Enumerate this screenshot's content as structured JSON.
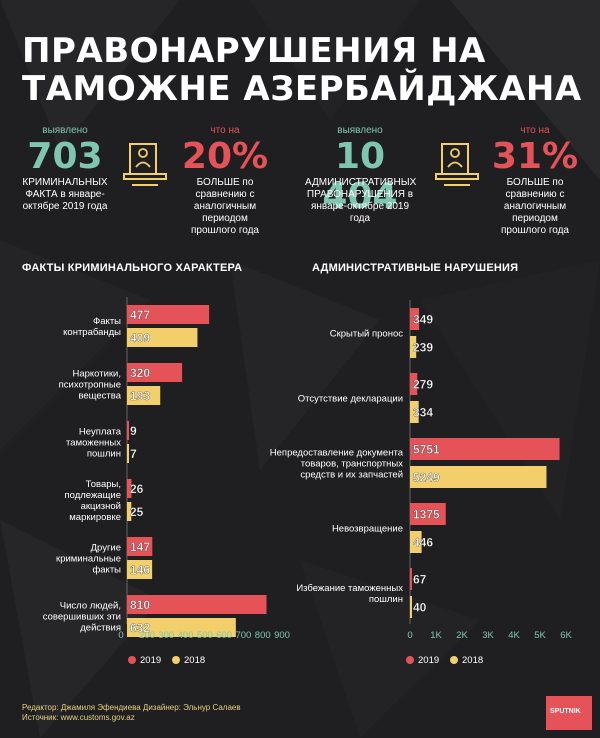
{
  "title": "ПРАВОНАРУШЕНИЯ НА ТАМОЖНЕ АЗЕРБАЙДЖАНА",
  "stats": [
    {
      "top_label": "выявлено",
      "value": "703",
      "desc": "КРИМИНАЛЬНЫХ ФАКТА в январе-октябре 2019 года"
    },
    {
      "top_label": "что на",
      "value": "20%",
      "desc": "БОЛЬШЕ по сравнению с аналогичным периодом прошлого года"
    },
    {
      "top_label": "выявлено",
      "value": "10 404",
      "desc": "АДМИНИСТРАТИВНЫХ ПРАВОНАРУШЕНИЯ в январе-октябре 2019 года"
    },
    {
      "top_label": "что на",
      "value": "31%",
      "desc": "БОЛЬШЕ по сравнению с аналогичным периодом прошлого года"
    }
  ],
  "colors": {
    "y2019": "#e55358",
    "y2018": "#f3cf6b",
    "teal": "#7fc6b1",
    "background": "#1f1f21"
  },
  "icons": [
    "document-laptop-icon",
    "document-laptop-icon"
  ],
  "chart_data": [
    {
      "type": "bar",
      "orientation": "horizontal",
      "title": "ФАКТЫ КРИМИНАЛЬНОГО ХАРАКТЕРА",
      "categories": [
        "Факты контрабанды",
        "Наркотики, психотропные вещества",
        "Неуплата таможенных пошлин",
        "Товары, подлежащие акцизной маркировке",
        "Другие криминальные факты",
        "Число людей, совершивших эти действия"
      ],
      "series": [
        {
          "name": "2019",
          "values": [
            477,
            320,
            9,
            26,
            147,
            810
          ]
        },
        {
          "name": "2018",
          "values": [
            409,
            193,
            7,
            25,
            146,
            632
          ]
        }
      ],
      "xlim": [
        0,
        900
      ],
      "xticks": [
        "0",
        "200",
        "300",
        "400",
        "500",
        "600",
        "700",
        "800",
        "900"
      ],
      "legend": [
        "2019",
        "2018"
      ],
      "legend_position": "bottom"
    },
    {
      "type": "bar",
      "orientation": "horizontal",
      "title": "АДМИНИСТРАТИВНЫЕ НАРУШЕНИЯ",
      "categories": [
        "Скрытый пронос",
        "Отсутствие декларации",
        "Непредоставление документа товаров, транспортных средств и их запчастей",
        "Невозвращение",
        "Избежание таможенных пошлин"
      ],
      "series": [
        {
          "name": "2019",
          "values": [
            349,
            279,
            5751,
            1375,
            67
          ]
        },
        {
          "name": "2018",
          "values": [
            239,
            334,
            5249,
            446,
            40
          ]
        }
      ],
      "xlim": [
        0,
        6000
      ],
      "xticks": [
        "0",
        "1K",
        "2K",
        "3K",
        "4K",
        "5K",
        "6K"
      ],
      "legend": [
        "2019",
        "2018"
      ],
      "legend_position": "bottom"
    }
  ],
  "footer": {
    "credits": "Редактор: Джамиля Эфендиева  Дизайнер: Эльнур Салаев",
    "source": "Источник: www.customs.gov.az",
    "brand": "SPUTNIK"
  }
}
